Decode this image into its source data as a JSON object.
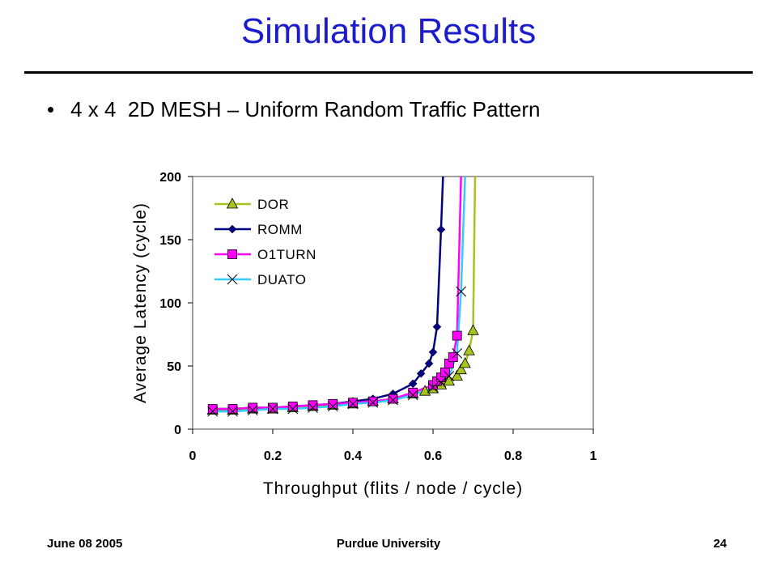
{
  "slide": {
    "title": "Simulation Results",
    "bullet_symbol": "•",
    "bullet": "4 x 4  2D MESH – Uniform Random Traffic Pattern"
  },
  "footer": {
    "date": "June 08 2005",
    "org": "Purdue University",
    "page": "24"
  },
  "colors": {
    "title": "#1c1ccc",
    "DOR": "#a6c41e",
    "ROMM": "#000080",
    "O1TURN": "#ff00ff",
    "DUATO": "#33ccff"
  },
  "chart_data": {
    "type": "line",
    "xlabel": "Throughput (flits / node / cycle)",
    "ylabel": "Average Latency (cycle)",
    "xlim": [
      0,
      1
    ],
    "ylim": [
      0,
      200
    ],
    "xticks": [
      "0",
      "0.2",
      "0.4",
      "0.6",
      "0.8",
      "1"
    ],
    "yticks": [
      "0",
      "50",
      "100",
      "150",
      "200"
    ],
    "grid": false,
    "legend_position": "top-left",
    "series": [
      {
        "name": "DOR",
        "marker": "triangle",
        "color": "#a6c41e",
        "x": [
          0.05,
          0.1,
          0.15,
          0.2,
          0.25,
          0.3,
          0.35,
          0.4,
          0.45,
          0.5,
          0.55,
          0.58,
          0.6,
          0.62,
          0.64,
          0.66,
          0.67,
          0.68,
          0.69,
          0.7,
          0.705
        ],
        "y": [
          15,
          15,
          16,
          16,
          17,
          18,
          19,
          20,
          22,
          24,
          28,
          30,
          32,
          35,
          38,
          42,
          47,
          52,
          62,
          78,
          200
        ]
      },
      {
        "name": "ROMM",
        "marker": "diamond",
        "color": "#000080",
        "x": [
          0.05,
          0.1,
          0.15,
          0.2,
          0.25,
          0.3,
          0.35,
          0.4,
          0.45,
          0.5,
          0.55,
          0.57,
          0.59,
          0.6,
          0.61,
          0.62,
          0.625
        ],
        "y": [
          16,
          16,
          17,
          17,
          18,
          19,
          20,
          22,
          24,
          28,
          36,
          44,
          52,
          61,
          81,
          158,
          200
        ]
      },
      {
        "name": "O1TURN",
        "marker": "square",
        "color": "#ff00ff",
        "x": [
          0.05,
          0.1,
          0.15,
          0.2,
          0.25,
          0.3,
          0.35,
          0.4,
          0.45,
          0.5,
          0.55,
          0.6,
          0.61,
          0.62,
          0.63,
          0.64,
          0.65,
          0.66,
          0.67
        ],
        "y": [
          16,
          16,
          17,
          17,
          18,
          19,
          20,
          21,
          22,
          24,
          29,
          35,
          38,
          41,
          45,
          52,
          57,
          74,
          200
        ]
      },
      {
        "name": "DUATO",
        "marker": "x",
        "color": "#33ccff",
        "x": [
          0.05,
          0.1,
          0.15,
          0.2,
          0.25,
          0.3,
          0.35,
          0.4,
          0.45,
          0.5,
          0.55,
          0.6,
          0.62,
          0.64,
          0.66,
          0.67,
          0.68
        ],
        "y": [
          14,
          14,
          15,
          16,
          16,
          17,
          18,
          20,
          21,
          23,
          27,
          33,
          37,
          42,
          60,
          109,
          200
        ]
      }
    ]
  }
}
